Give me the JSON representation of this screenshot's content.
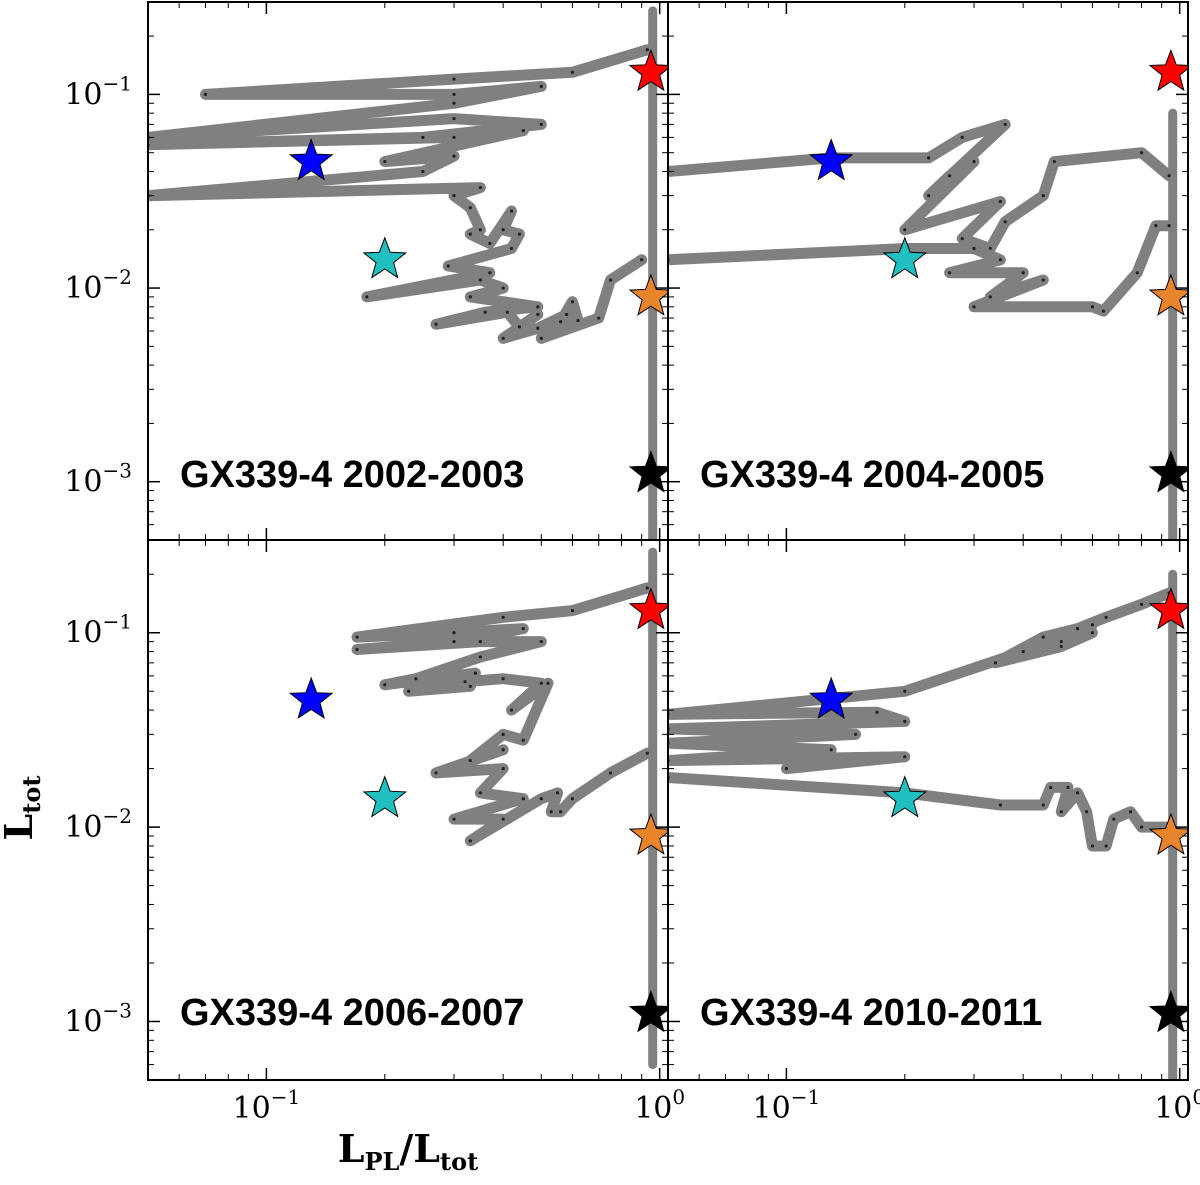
{
  "chart_data": {
    "type": "line",
    "x_scale": "log",
    "y_scale": "log",
    "xlim": [
      0.05,
      1.05
    ],
    "ylim": [
      0.0005,
      0.3
    ],
    "xlabel": {
      "main": "L",
      "sub1": "PL",
      "sep": "/L",
      "sub2": "tot"
    },
    "ylabel": {
      "main": "L",
      "sub": "tot"
    },
    "x_ticks": [
      {
        "value": 0.1,
        "base": "10",
        "exp": "−1"
      },
      {
        "value": 1.0,
        "base": "10",
        "exp": "0"
      }
    ],
    "y_ticks": [
      {
        "value": 0.001,
        "base": "10",
        "exp": "−3"
      },
      {
        "value": 0.01,
        "base": "10",
        "exp": "−2"
      },
      {
        "value": 0.1,
        "base": "10",
        "exp": "−1"
      }
    ],
    "reference_stars": [
      {
        "name": "red-star",
        "color": "#ff0000",
        "x": 0.95,
        "y": 0.13
      },
      {
        "name": "blue-star",
        "color": "#0000ff",
        "x": 0.13,
        "y": 0.045
      },
      {
        "name": "cyan-star",
        "color": "#20c0c0",
        "x": 0.2,
        "y": 0.014
      },
      {
        "name": "orange-star",
        "color": "#e8842a",
        "x": 0.95,
        "y": 0.009
      },
      {
        "name": "black-star",
        "color": "#000000",
        "x": 0.95,
        "y": 0.0011
      }
    ],
    "track_color": "#808080",
    "panels": [
      {
        "label": "GX339-4 2002-2003",
        "vertical_track": {
          "x": 0.96,
          "y": [
            0.0005,
            0.27
          ]
        },
        "tracks": [
          [
            [
              0.93,
              0.17
            ],
            [
              0.6,
              0.13
            ],
            [
              0.3,
              0.12
            ],
            [
              0.07,
              0.1
            ],
            [
              0.3,
              0.1
            ],
            [
              0.5,
              0.11
            ],
            [
              0.3,
              0.09
            ],
            [
              0.05,
              0.06
            ],
            [
              0.3,
              0.075
            ],
            [
              0.5,
              0.07
            ],
            [
              0.25,
              0.06
            ],
            [
              0.05,
              0.055
            ],
            [
              0.3,
              0.06
            ],
            [
              0.45,
              0.065
            ],
            [
              0.2,
              0.045
            ],
            [
              0.3,
              0.048
            ],
            [
              0.25,
              0.04
            ],
            [
              0.05,
              0.03
            ],
            [
              0.35,
              0.033
            ],
            [
              0.3,
              0.03
            ],
            [
              0.33,
              0.026
            ],
            [
              0.35,
              0.02
            ],
            [
              0.33,
              0.019
            ],
            [
              0.37,
              0.017
            ],
            [
              0.42,
              0.025
            ],
            [
              0.4,
              0.02
            ],
            [
              0.44,
              0.019
            ],
            [
              0.42,
              0.016
            ],
            [
              0.29,
              0.013
            ],
            [
              0.37,
              0.012
            ],
            [
              0.18,
              0.009
            ],
            [
              0.35,
              0.011
            ],
            [
              0.4,
              0.01
            ],
            [
              0.33,
              0.009
            ],
            [
              0.49,
              0.008
            ],
            [
              0.36,
              0.0075
            ],
            [
              0.27,
              0.0065
            ],
            [
              0.41,
              0.0075
            ],
            [
              0.44,
              0.0063
            ],
            [
              0.49,
              0.0073
            ],
            [
              0.4,
              0.0055
            ],
            [
              0.49,
              0.0062
            ],
            [
              0.58,
              0.0073
            ],
            [
              0.56,
              0.0067
            ],
            [
              0.6,
              0.0085
            ],
            [
              0.62,
              0.0068
            ],
            [
              0.5,
              0.0055
            ],
            [
              0.7,
              0.007
            ],
            [
              0.75,
              0.011
            ],
            [
              0.9,
              0.014
            ]
          ]
        ]
      },
      {
        "label": "GX339-4 2004-2005",
        "vertical_track": {
          "x": 0.96,
          "y": [
            0.0005,
            0.08
          ]
        },
        "tracks": [
          [
            [
              0.05,
              0.04
            ],
            [
              0.13,
              0.047
            ],
            [
              0.23,
              0.047
            ],
            [
              0.28,
              0.06
            ],
            [
              0.36,
              0.07
            ],
            [
              0.23,
              0.03
            ],
            [
              0.26,
              0.038
            ],
            [
              0.3,
              0.045
            ],
            [
              0.2,
              0.02
            ],
            [
              0.35,
              0.028
            ],
            [
              0.28,
              0.018
            ],
            [
              0.33,
              0.016
            ],
            [
              0.36,
              0.022
            ],
            [
              0.45,
              0.03
            ],
            [
              0.48,
              0.045
            ],
            [
              0.8,
              0.05
            ],
            [
              0.94,
              0.038
            ]
          ],
          [
            [
              0.05,
              0.014
            ],
            [
              0.2,
              0.016
            ],
            [
              0.3,
              0.016
            ],
            [
              0.35,
              0.014
            ],
            [
              0.26,
              0.012
            ],
            [
              0.4,
              0.012
            ],
            [
              0.33,
              0.009
            ],
            [
              0.45,
              0.011
            ],
            [
              0.3,
              0.008
            ],
            [
              0.6,
              0.008
            ],
            [
              0.64,
              0.0076
            ],
            [
              0.78,
              0.012
            ],
            [
              0.87,
              0.021
            ],
            [
              0.94,
              0.021
            ]
          ]
        ]
      },
      {
        "label": "GX339-4 2006-2007",
        "vertical_track": {
          "x": 0.96,
          "y": [
            0.0006,
            0.26
          ]
        },
        "tracks": [
          [
            [
              0.93,
              0.17
            ],
            [
              0.6,
              0.13
            ],
            [
              0.4,
              0.12
            ],
            [
              0.17,
              0.095
            ],
            [
              0.3,
              0.1
            ],
            [
              0.45,
              0.105
            ],
            [
              0.3,
              0.09
            ],
            [
              0.17,
              0.082
            ],
            [
              0.35,
              0.09
            ],
            [
              0.5,
              0.09
            ],
            [
              0.35,
              0.075
            ],
            [
              0.24,
              0.058
            ],
            [
              0.2,
              0.054
            ],
            [
              0.34,
              0.062
            ],
            [
              0.33,
              0.053
            ],
            [
              0.23,
              0.05
            ],
            [
              0.32,
              0.056
            ],
            [
              0.4,
              0.058
            ],
            [
              0.5,
              0.055
            ],
            [
              0.42,
              0.04
            ],
            [
              0.52,
              0.055
            ],
            [
              0.45,
              0.028
            ],
            [
              0.4,
              0.03
            ],
            [
              0.33,
              0.022
            ],
            [
              0.4,
              0.025
            ],
            [
              0.27,
              0.019
            ],
            [
              0.4,
              0.02
            ],
            [
              0.35,
              0.015
            ],
            [
              0.45,
              0.014
            ],
            [
              0.3,
              0.011
            ],
            [
              0.4,
              0.011
            ],
            [
              0.33,
              0.0085
            ],
            [
              0.5,
              0.014
            ],
            [
              0.55,
              0.015
            ],
            [
              0.53,
              0.012
            ],
            [
              0.56,
              0.012
            ],
            [
              0.6,
              0.014
            ],
            [
              0.75,
              0.019
            ],
            [
              0.93,
              0.024
            ]
          ]
        ]
      },
      {
        "label": "GX339-4 2010-2011",
        "vertical_track": {
          "x": 0.96,
          "y": [
            0.0005,
            0.2
          ]
        },
        "tracks": [
          [
            [
              0.94,
              0.16
            ],
            [
              0.8,
              0.14
            ],
            [
              0.65,
              0.12
            ],
            [
              0.55,
              0.105
            ],
            [
              0.45,
              0.095
            ],
            [
              0.34,
              0.07
            ],
            [
              0.5,
              0.085
            ],
            [
              0.6,
              0.1
            ],
            [
              0.5,
              0.09
            ],
            [
              0.6,
              0.11
            ],
            [
              0.4,
              0.08
            ],
            [
              0.2,
              0.05
            ],
            [
              0.05,
              0.038
            ],
            [
              0.17,
              0.039
            ],
            [
              0.2,
              0.035
            ],
            [
              0.05,
              0.032
            ],
            [
              0.15,
              0.03
            ],
            [
              0.05,
              0.027
            ],
            [
              0.13,
              0.025
            ],
            [
              0.05,
              0.022
            ],
            [
              0.2,
              0.023
            ],
            [
              0.1,
              0.02
            ]
          ],
          [
            [
              0.05,
              0.018
            ],
            [
              0.2,
              0.015
            ],
            [
              0.35,
              0.013
            ],
            [
              0.45,
              0.013
            ],
            [
              0.47,
              0.016
            ],
            [
              0.52,
              0.016
            ],
            [
              0.5,
              0.012
            ],
            [
              0.55,
              0.015
            ],
            [
              0.58,
              0.012
            ],
            [
              0.6,
              0.008
            ],
            [
              0.65,
              0.008
            ],
            [
              0.68,
              0.011
            ],
            [
              0.75,
              0.012
            ],
            [
              0.8,
              0.01
            ],
            [
              0.95,
              0.01
            ]
          ]
        ]
      }
    ]
  }
}
